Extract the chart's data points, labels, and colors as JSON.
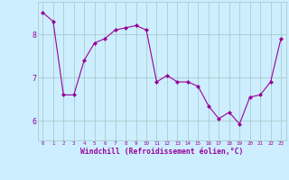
{
  "x": [
    0,
    1,
    2,
    3,
    4,
    5,
    6,
    7,
    8,
    9,
    10,
    11,
    12,
    13,
    14,
    15,
    16,
    17,
    18,
    19,
    20,
    21,
    22,
    23
  ],
  "y": [
    8.5,
    8.3,
    6.6,
    6.6,
    7.4,
    7.8,
    7.9,
    8.1,
    8.15,
    8.2,
    8.1,
    6.9,
    7.05,
    6.9,
    6.9,
    6.8,
    6.35,
    6.05,
    6.2,
    5.93,
    6.55,
    6.6,
    6.9,
    7.9
  ],
  "line_color": "#990099",
  "marker": "D",
  "marker_size": 2,
  "bg_color": "#cceeff",
  "grid_color": "#aacccc",
  "xlabel": "Windchill (Refroidissement éolien,°C)",
  "xlabel_color": "#990099",
  "yticks": [
    6,
    7,
    8
  ],
  "xticks": [
    0,
    1,
    2,
    3,
    4,
    5,
    6,
    7,
    8,
    9,
    10,
    11,
    12,
    13,
    14,
    15,
    16,
    17,
    18,
    19,
    20,
    21,
    22,
    23
  ],
  "xlim": [
    -0.5,
    23.5
  ],
  "ylim": [
    5.55,
    8.75
  ]
}
